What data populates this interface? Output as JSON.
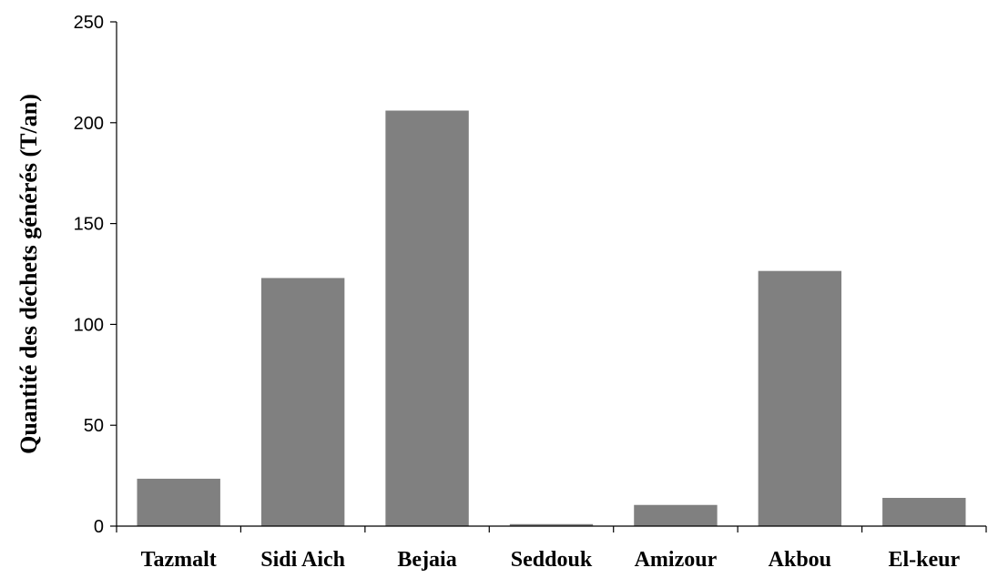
{
  "chart_data": {
    "type": "bar",
    "title": "",
    "xlabel": "",
    "ylabel": "Quantité des déchets générés (T/an)",
    "categories": [
      "Tazmalt",
      "Sidi Aich",
      "Bejaia",
      "Seddouk",
      "Amizour",
      "Akbou",
      "El-keur"
    ],
    "values": [
      23.5,
      123,
      206,
      1,
      10.5,
      126.5,
      14
    ],
    "ylim": [
      0,
      250
    ],
    "yticks": [
      0,
      50,
      100,
      150,
      200,
      250
    ],
    "grid": false,
    "legend": "none",
    "bar_color": "#808080"
  }
}
